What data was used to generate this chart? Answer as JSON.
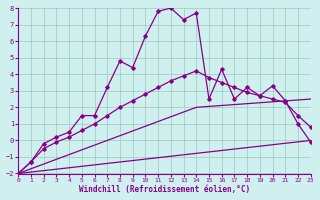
{
  "x_range": [
    0,
    23
  ],
  "y_range": [
    -2,
    8
  ],
  "xlabel": "Windchill (Refroidissement éolien,°C)",
  "bg_color": "#cff0ee",
  "grid_color": "#99ccbb",
  "line_color": "#880088",
  "xticks": [
    0,
    1,
    2,
    3,
    4,
    5,
    6,
    7,
    8,
    9,
    10,
    11,
    12,
    13,
    14,
    15,
    16,
    17,
    18,
    19,
    20,
    21,
    22,
    23
  ],
  "yticks": [
    -2,
    -1,
    0,
    1,
    2,
    3,
    4,
    5,
    6,
    7,
    8
  ],
  "jagged_x": [
    0,
    1,
    2,
    3,
    4,
    5,
    6,
    7,
    8,
    9,
    10,
    11,
    12,
    13,
    14,
    15,
    16,
    17,
    18,
    19,
    20,
    21,
    22,
    23
  ],
  "jagged_y": [
    -2.0,
    -1.3,
    -0.2,
    0.2,
    0.5,
    1.5,
    1.5,
    3.2,
    4.8,
    4.4,
    6.3,
    7.8,
    8.0,
    7.3,
    7.7,
    2.5,
    4.3,
    2.5,
    3.2,
    2.7,
    3.3,
    2.4,
    1.0,
    -0.1
  ],
  "curved_x": [
    0,
    1,
    2,
    3,
    4,
    5,
    6,
    7,
    8,
    9,
    10,
    11,
    12,
    13,
    14,
    15,
    16,
    17,
    18,
    19,
    20,
    21,
    22,
    23
  ],
  "curved_y": [
    -2.0,
    -1.3,
    -0.5,
    -0.1,
    0.2,
    0.6,
    1.0,
    1.5,
    2.0,
    2.4,
    2.8,
    3.2,
    3.6,
    3.9,
    4.2,
    3.8,
    3.5,
    3.2,
    2.9,
    2.7,
    2.5,
    2.3,
    1.5,
    0.8
  ],
  "line3_x": [
    0,
    23
  ],
  "line3_y": [
    -2.0,
    0.0
  ],
  "line4_x": [
    0,
    14,
    23
  ],
  "line4_y": [
    -2.0,
    2.0,
    2.5
  ]
}
